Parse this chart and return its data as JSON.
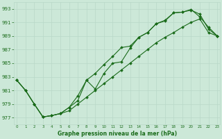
{
  "title": "Graphe pression niveau de la mer (hPa)",
  "x_values": [
    0,
    1,
    2,
    3,
    4,
    5,
    6,
    7,
    8,
    9,
    10,
    11,
    12,
    13,
    14,
    15,
    16,
    17,
    18,
    19,
    20,
    21,
    22,
    23
  ],
  "x_labels": [
    "0",
    "1",
    "2",
    "3",
    "4",
    "5",
    "6",
    "7",
    "8",
    "9",
    "10",
    "11",
    "12",
    "13",
    "14",
    "15",
    "16",
    "17",
    "18",
    "19",
    "20",
    "21",
    "22",
    "23"
  ],
  "series1": [
    982.5,
    981.0,
    979.0,
    977.1,
    977.3,
    977.6,
    978.5,
    980.2,
    982.5,
    981.2,
    983.5,
    985.0,
    985.2,
    987.2,
    988.8,
    989.5,
    990.8,
    991.2,
    992.4,
    992.5,
    992.9,
    991.8,
    990.3,
    989.0
  ],
  "series2": [
    982.5,
    981.0,
    979.0,
    977.1,
    977.3,
    977.6,
    978.5,
    979.5,
    982.5,
    983.5,
    984.8,
    986.0,
    987.3,
    987.5,
    988.8,
    989.5,
    990.8,
    991.3,
    992.4,
    992.5,
    992.8,
    992.2,
    990.0,
    989.0
  ],
  "series3": [
    982.5,
    981.0,
    979.0,
    977.1,
    977.3,
    977.6,
    978.0,
    979.0,
    980.0,
    981.0,
    982.0,
    983.0,
    984.0,
    985.0,
    986.0,
    987.0,
    988.0,
    988.8,
    989.5,
    990.3,
    991.0,
    991.5,
    989.5,
    989.0
  ],
  "line_color": "#1a6b1a",
  "bg_color": "#cce8d8",
  "grid_color_minor": "#d4ece0",
  "grid_color_major": "#b8d8c8",
  "ylim": [
    976,
    994
  ],
  "yticks": [
    977,
    979,
    981,
    983,
    985,
    987,
    989,
    991,
    993
  ],
  "xlim": [
    -0.3,
    23.3
  ],
  "figsize": [
    3.2,
    2.0
  ],
  "dpi": 100
}
